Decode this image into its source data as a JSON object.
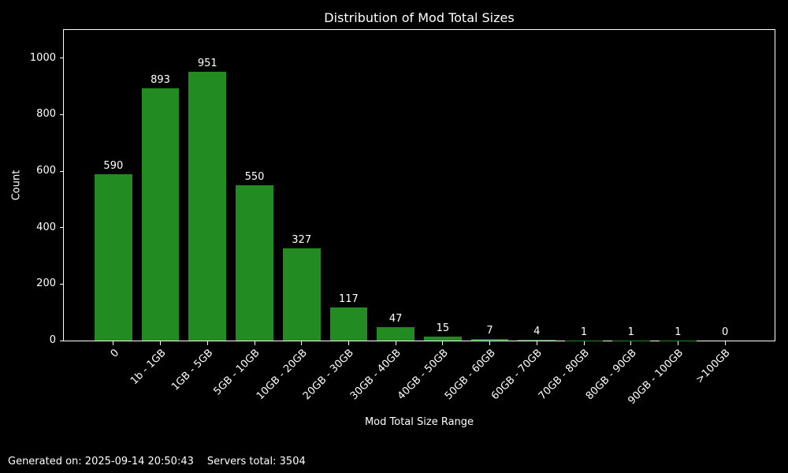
{
  "chart_data": {
    "type": "bar",
    "title": "Distribution of Mod Total Sizes",
    "xlabel": "Mod Total Size Range",
    "ylabel": "Count",
    "categories": [
      "0",
      "1b - 1GB",
      "1GB - 5GB",
      "5GB - 10GB",
      "10GB - 20GB",
      "20GB - 30GB",
      "30GB - 40GB",
      "40GB - 50GB",
      "50GB - 60GB",
      "60GB - 70GB",
      "70GB - 80GB",
      "80GB - 90GB",
      "90GB - 100GB",
      ">100GB"
    ],
    "values": [
      590,
      893,
      951,
      550,
      327,
      117,
      47,
      15,
      7,
      4,
      1,
      1,
      1,
      0
    ],
    "ylim": [
      0,
      1100
    ],
    "yticks": [
      0,
      200,
      400,
      600,
      800,
      1000
    ],
    "bar_color": "#228B22",
    "background_color": "#000000",
    "text_color": "#ffffff",
    "grid": false,
    "legend": "none",
    "bar_value_labels": true,
    "x_tick_rotation_deg": 45
  },
  "footer": {
    "generated_on": "Generated on: 2025-09-14 20:50:43",
    "servers_total": "Servers total: 3504"
  }
}
